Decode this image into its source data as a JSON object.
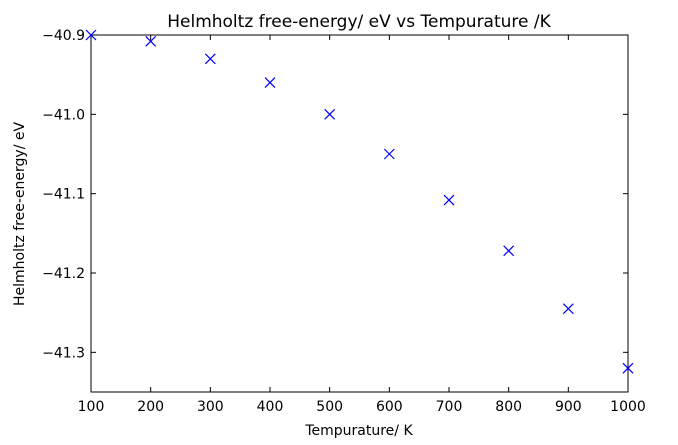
{
  "chart_data": {
    "type": "scatter",
    "title": "Helmholtz free-energy/ eV vs Tempurature /K",
    "xlabel": "Tempurature/ K",
    "ylabel": "Helmholtz free-energy/ eV",
    "xlim": [
      100,
      1000
    ],
    "ylim": [
      -41.35,
      -40.9
    ],
    "xticks": [
      100,
      200,
      300,
      400,
      500,
      600,
      700,
      800,
      900,
      1000
    ],
    "yticks": [
      -41.3,
      -41.2,
      -41.1,
      -41.0,
      -40.9
    ],
    "xtick_labels": [
      "100",
      "200",
      "300",
      "400",
      "500",
      "600",
      "700",
      "800",
      "900",
      "1000"
    ],
    "ytick_labels": [
      "−41.3",
      "−41.2",
      "−41.1",
      "−41.0",
      "−40.9"
    ],
    "grid": false,
    "series": [
      {
        "marker": "x",
        "color": "#0000ff",
        "x": [
          100,
          200,
          300,
          400,
          500,
          600,
          700,
          800,
          900,
          1000
        ],
        "y": [
          -40.9,
          -40.908,
          -40.93,
          -40.96,
          -41.0,
          -41.05,
          -41.108,
          -41.172,
          -41.245,
          -41.32
        ]
      }
    ]
  }
}
